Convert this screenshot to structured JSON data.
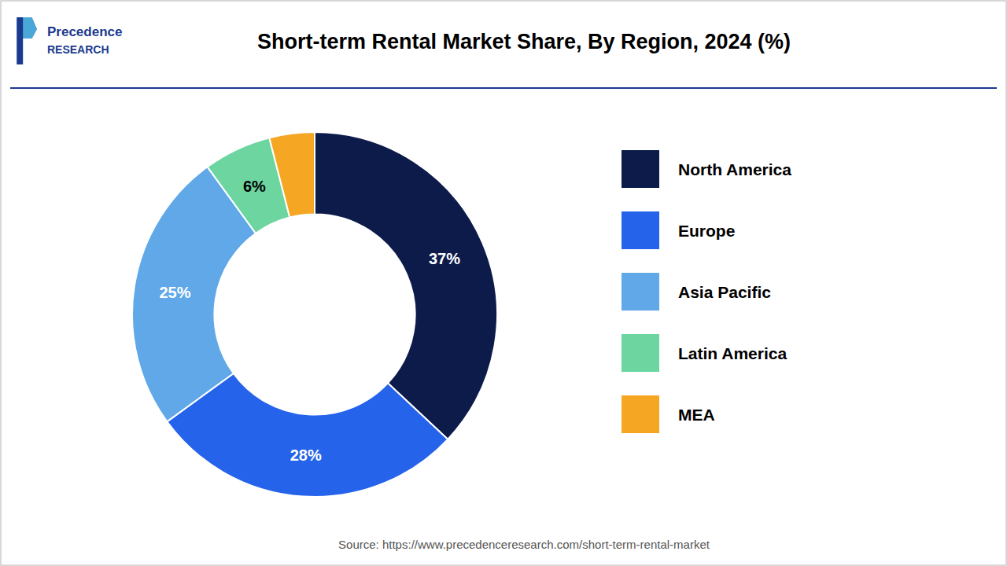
{
  "chart_data": {
    "type": "donut",
    "title": "Short-term Rental Market Share, By Region, 2024 (%)",
    "categories": [
      "North America",
      "Europe",
      "Asia Pacific",
      "Latin America",
      "MEA"
    ],
    "values": [
      37,
      28,
      25,
      6,
      4
    ],
    "value_labels": [
      "37%",
      "28%",
      "25%",
      "6%",
      null
    ],
    "colors": [
      "#0d1b4b",
      "#2563eb",
      "#60a8e8",
      "#6dd5a0",
      "#f5a623"
    ],
    "data_labels": true,
    "legend": "right",
    "annotations": [
      "Source: https://www.precedenceresearch.com/short-term-rental-market",
      "Precedence",
      "RESEARCH"
    ]
  }
}
